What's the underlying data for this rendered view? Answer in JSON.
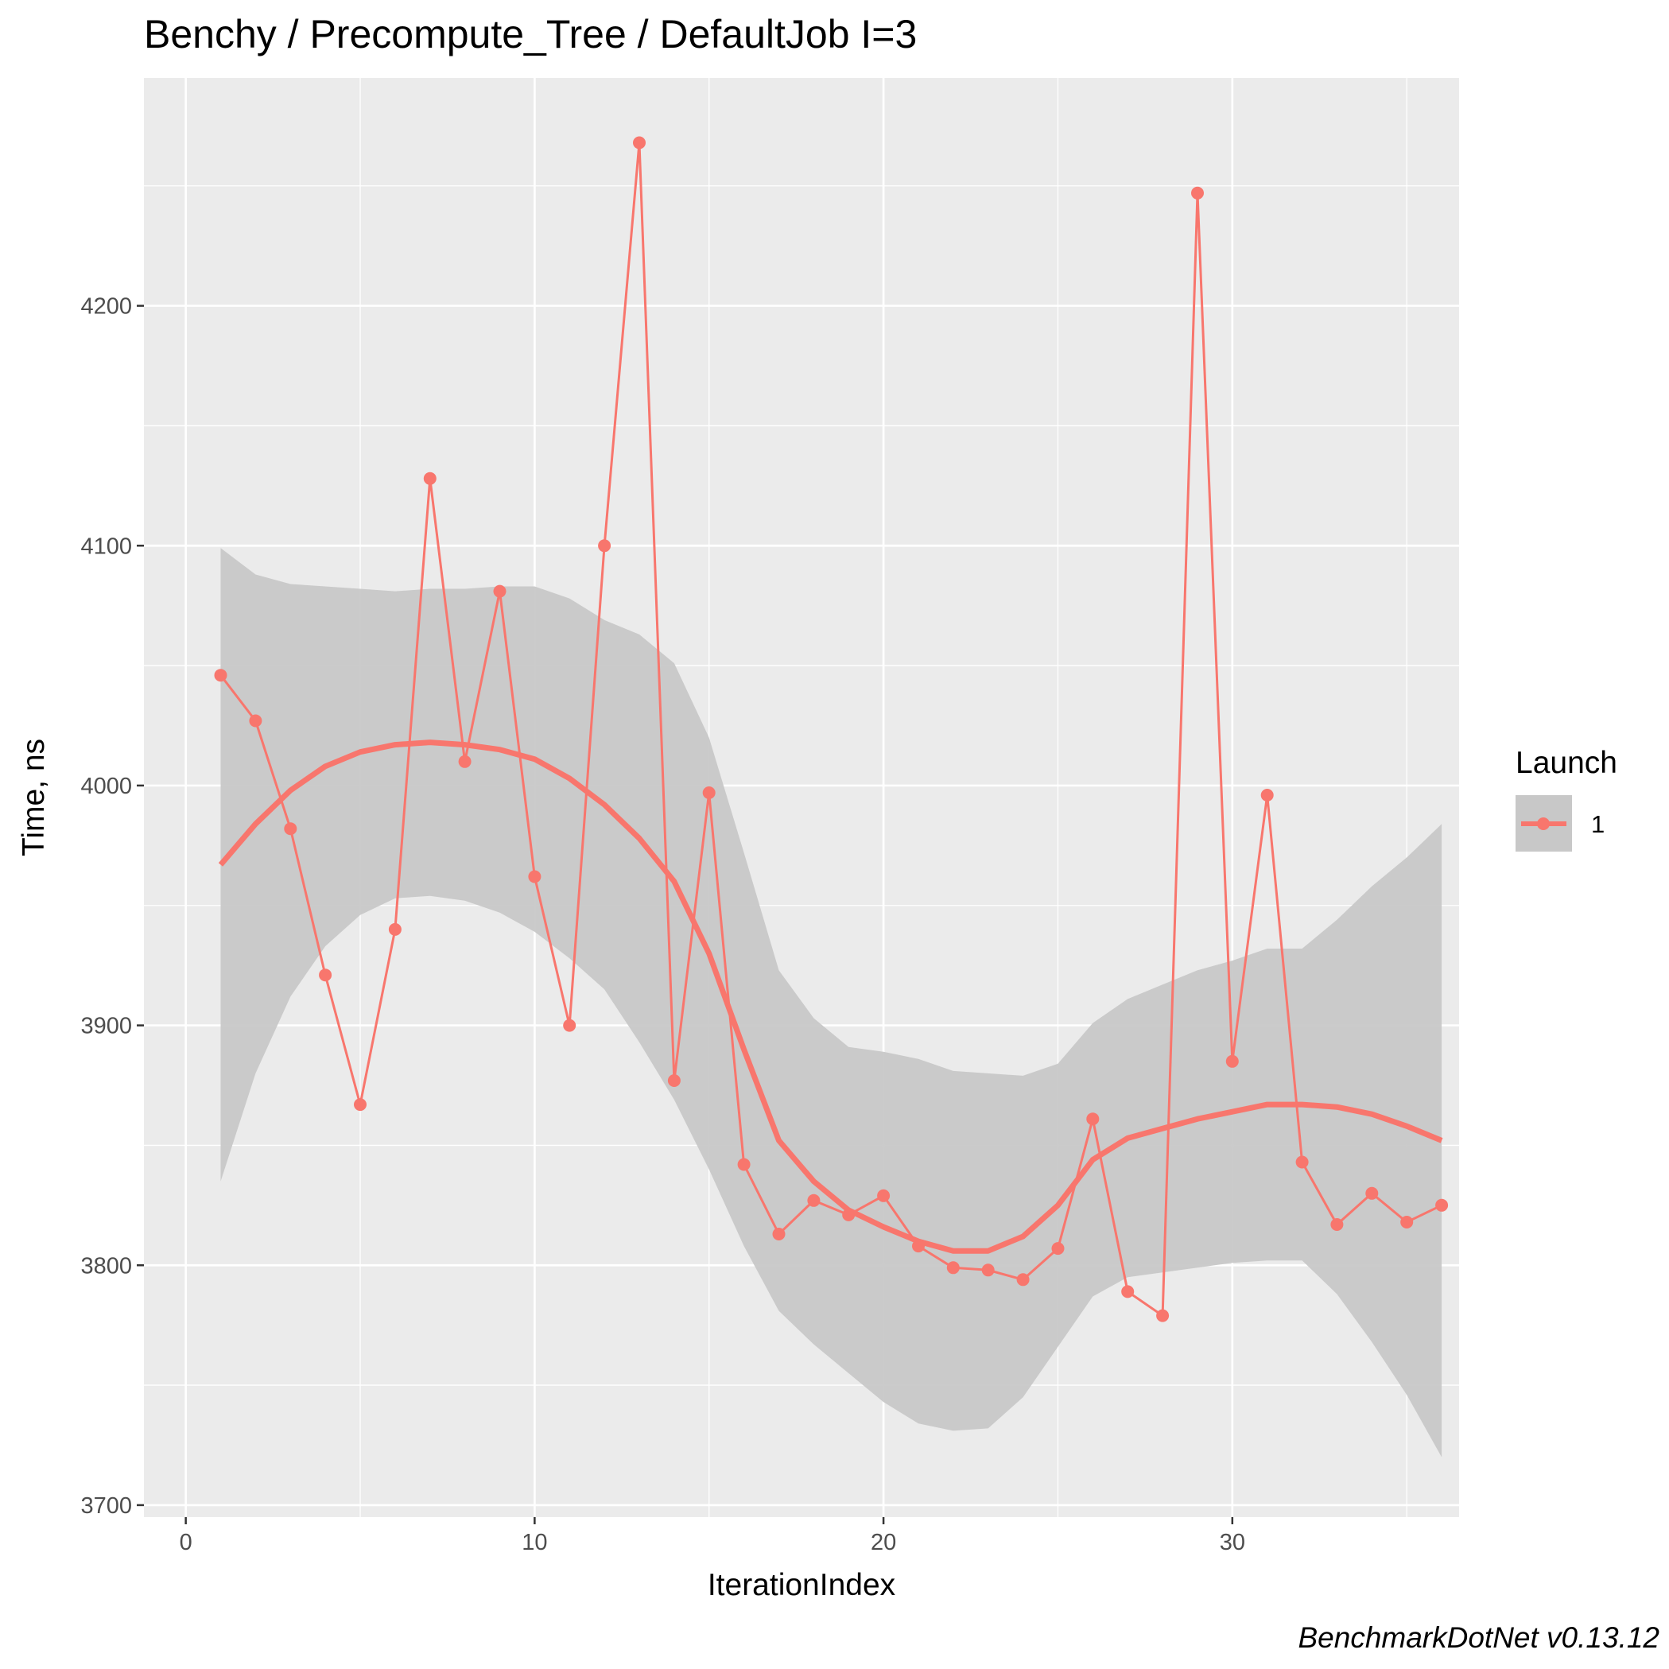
{
  "chart_data": {
    "type": "line",
    "title": "Benchy / Precompute_Tree / DefaultJob I=3",
    "xlabel": "IterationIndex",
    "ylabel": "Time, ns",
    "xlim": [
      -1.2,
      36.5
    ],
    "ylim": [
      3695,
      4295
    ],
    "x_ticks": [
      0,
      10,
      20,
      30
    ],
    "y_ticks": [
      3700,
      3800,
      3900,
      4000,
      4100,
      4200
    ],
    "grid": true,
    "legend": {
      "title": "Launch",
      "position": "right",
      "entries": [
        "1"
      ]
    },
    "series": [
      {
        "name": "1",
        "color": "#F8766D",
        "x": [
          1,
          2,
          3,
          4,
          5,
          6,
          7,
          8,
          9,
          10,
          11,
          12,
          13,
          14,
          15,
          16,
          17,
          18,
          19,
          20,
          21,
          22,
          23,
          24,
          25,
          26,
          27,
          28,
          29,
          30,
          31,
          32,
          33,
          34,
          35,
          36
        ],
        "y": [
          4046,
          4027,
          3982,
          3921,
          3867,
          3940,
          4128,
          4010,
          4081,
          3962,
          3900,
          4100,
          4268,
          3877,
          3997,
          3842,
          3813,
          3827,
          3821,
          3829,
          3808,
          3799,
          3798,
          3794,
          3807,
          3861,
          3789,
          3779,
          4247,
          3885,
          3996,
          3843,
          3817,
          3830,
          3818,
          3825
        ]
      }
    ],
    "smooth": {
      "x": [
        1,
        2,
        3,
        4,
        5,
        6,
        7,
        8,
        9,
        10,
        11,
        12,
        13,
        14,
        15,
        16,
        17,
        18,
        19,
        20,
        21,
        22,
        23,
        24,
        25,
        26,
        27,
        28,
        29,
        30,
        31,
        32,
        33,
        34,
        35,
        36
      ],
      "y": [
        3967,
        3984,
        3998,
        4008,
        4014,
        4017,
        4018,
        4017,
        4015,
        4011,
        4003,
        3992,
        3978,
        3960,
        3930,
        3890,
        3852,
        3835,
        3823,
        3816,
        3810,
        3806,
        3806,
        3812,
        3825,
        3844,
        3853,
        3857,
        3861,
        3864,
        3867,
        3867,
        3866,
        3863,
        3858,
        3852
      ],
      "lower": [
        3835,
        3880,
        3912,
        3933,
        3946,
        3953,
        3954,
        3952,
        3947,
        3939,
        3928,
        3915,
        3893,
        3869,
        3840,
        3808,
        3781,
        3767,
        3755,
        3743,
        3734,
        3731,
        3732,
        3745,
        3766,
        3787,
        3795,
        3797,
        3799,
        3801,
        3802,
        3802,
        3788,
        3768,
        3746,
        3720
      ],
      "upper": [
        4099,
        4088,
        4084,
        4083,
        4082,
        4081,
        4082,
        4082,
        4083,
        4083,
        4078,
        4069,
        4063,
        4051,
        4020,
        3972,
        3923,
        3903,
        3891,
        3889,
        3886,
        3881,
        3880,
        3879,
        3884,
        3901,
        3911,
        3917,
        3923,
        3927,
        3932,
        3932,
        3944,
        3958,
        3970,
        3984
      ],
      "color": "#F8766D",
      "band_color": "#C8C8C8"
    }
  },
  "caption": "BenchmarkDotNet v0.13.12"
}
